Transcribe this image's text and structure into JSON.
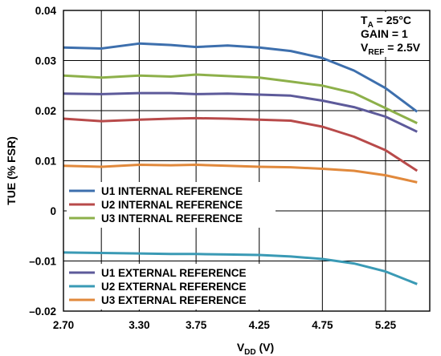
{
  "chart_data": {
    "type": "line",
    "xlabel": {
      "main": "V",
      "sub": "DD",
      "rest": " (V)"
    },
    "ylabel": "TUE (% FSR)",
    "xlim": [
      2.7,
      5.6
    ],
    "ylim": [
      -0.02,
      0.04
    ],
    "x_ticks": [
      {
        "value": 2.7,
        "label": "2.70"
      },
      {
        "value": 3.3,
        "label": "3.30"
      },
      {
        "value": 3.75,
        "label": "3.75"
      },
      {
        "value": 4.25,
        "label": "4.25"
      },
      {
        "value": 4.75,
        "label": "4.75"
      },
      {
        "value": 5.25,
        "label": "5.25"
      }
    ],
    "x_gridlines": [
      2.7,
      3.0,
      3.3,
      3.75,
      4.25,
      4.75,
      5.25,
      5.6
    ],
    "y_ticks": [
      {
        "value": 0.04,
        "label": "0.04"
      },
      {
        "value": 0.03,
        "label": "0.03"
      },
      {
        "value": 0.02,
        "label": "0.02"
      },
      {
        "value": 0.01,
        "label": "0.01"
      },
      {
        "value": 0,
        "label": "0"
      },
      {
        "value": -0.01,
        "label": "–0.01"
      },
      {
        "value": -0.02,
        "label": "–0.02"
      }
    ],
    "grid": true,
    "conditions": [
      {
        "main": "T",
        "sub": "A",
        "rest": " = 25°C"
      },
      {
        "main": "GAIN = 1",
        "sub": "",
        "rest": ""
      },
      {
        "main": "V",
        "sub": "REF",
        "rest": " = 2.5V"
      }
    ],
    "x": [
      2.7,
      3.0,
      3.3,
      3.55,
      3.75,
      4.0,
      4.25,
      4.5,
      4.75,
      5.0,
      5.25,
      5.5
    ],
    "series": [
      {
        "name": "U1 INTERNAL REFERENCE",
        "color": "#3d6fad",
        "group": "internal",
        "values": [
          0.0326,
          0.0324,
          0.0334,
          0.0331,
          0.0327,
          0.033,
          0.0326,
          0.0319,
          0.0305,
          0.028,
          0.0245,
          0.0198
        ]
      },
      {
        "name": "U2 INTERNAL REFERENCE",
        "color": "#b84a4a",
        "group": "internal",
        "values": [
          0.0184,
          0.0179,
          0.0182,
          0.0184,
          0.0185,
          0.0184,
          0.0182,
          0.018,
          0.0168,
          0.0148,
          0.0121,
          0.008
        ]
      },
      {
        "name": "U3 INTERNAL REFERENCE",
        "color": "#8db04a",
        "group": "internal",
        "values": [
          0.027,
          0.0266,
          0.027,
          0.0268,
          0.0272,
          0.0269,
          0.0266,
          0.0258,
          0.025,
          0.0235,
          0.0205,
          0.0175
        ]
      },
      {
        "name": "U1 EXTERNAL REFERENCE",
        "color": "#5d5a9a",
        "group": "external",
        "values": [
          0.0234,
          0.0233,
          0.0235,
          0.0235,
          0.0233,
          0.0234,
          0.0232,
          0.023,
          0.022,
          0.0207,
          0.0188,
          0.0158
        ]
      },
      {
        "name": "U2 EXTERNAL REFERENCE",
        "color": "#3a9ab5",
        "group": "external",
        "values": [
          -0.0083,
          -0.0084,
          -0.0085,
          -0.0086,
          -0.0086,
          -0.0087,
          -0.0088,
          -0.0091,
          -0.0096,
          -0.0105,
          -0.0121,
          -0.0146
        ]
      },
      {
        "name": "U3 EXTERNAL REFERENCE",
        "color": "#e1893c",
        "group": "external",
        "values": [
          0.009,
          0.0088,
          0.0092,
          0.0091,
          0.0092,
          0.009,
          0.0088,
          0.0087,
          0.0084,
          0.008,
          0.0071,
          0.0057
        ]
      }
    ]
  }
}
